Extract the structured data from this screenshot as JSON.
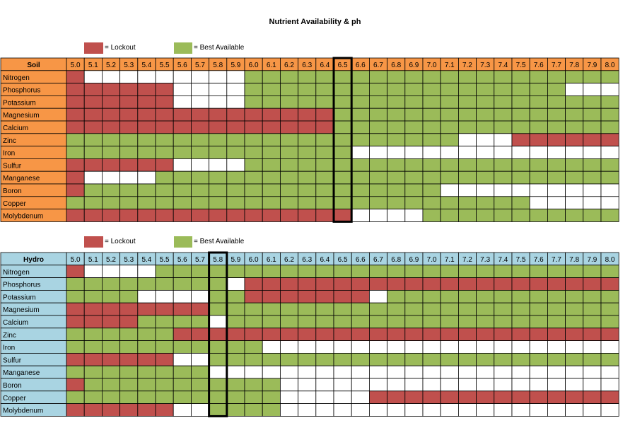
{
  "title": "Nutrient Availability & ph",
  "colors": {
    "lockout": "#c0504d",
    "best": "#9bbb59",
    "none": "#ffffff",
    "soil_header": "#f79646",
    "hydro_header": "#a9d4e2"
  },
  "legend": {
    "lockout": "= Lockout",
    "best": "= Best Available"
  },
  "chart_data": [
    {
      "type": "heatmap",
      "name": "Soil",
      "x": [
        "5.0",
        "5.1",
        "5.2",
        "5.3",
        "5.4",
        "5.5",
        "5.6",
        "5.7",
        "5.8",
        "5.9",
        "6.0",
        "6.1",
        "6.2",
        "6.3",
        "6.4",
        "6.5",
        "6.6",
        "6.7",
        "6.8",
        "6.9",
        "7.0",
        "7.1",
        "7.2",
        "7.3",
        "7.4",
        "7.5",
        "7.6",
        "7.7",
        "7.8",
        "7.9",
        "8.0"
      ],
      "highlight": "6.5",
      "codes": {
        "L": "Lockout",
        "B": "Best Available",
        "-": "Not available"
      },
      "rows": [
        {
          "label": "Nitrogen",
          "cells": "L---------BBBBBBBBBBBBBBBBBBBBB"
        },
        {
          "label": "Phosphorus",
          "cells": "LLLLLL----BBBBBBBBBBBBBBBBBB---"
        },
        {
          "label": "Potassium",
          "cells": "LLLLLL----BBBBBBBBBBBBBBBBBBBBB"
        },
        {
          "label": "Magnesium",
          "cells": "LLLLLLLLLLLLLLLBBBBBBBBBBBBBBBB"
        },
        {
          "label": "Calcium",
          "cells": "LLLLLLLLLLLLLLLBBBBBBBBBBBBBBBB"
        },
        {
          "label": "Zinc",
          "cells": "BBBBBBBBBBBBBBBBBBBBBB---LLLLLL"
        },
        {
          "label": "Iron",
          "cells": "BBBBBBBBBBBBBBBB---------------"
        },
        {
          "label": "Sulfur",
          "cells": "LLLLLL----BBBBBBBBBBBBBBBBBBBBB"
        },
        {
          "label": "Manganese",
          "cells": "L----BBBBBBBBBBBBBBBBBBBBBBBBBB"
        },
        {
          "label": "Boron",
          "cells": "LBBBBBBBBBBBBBBBBBBBB----------"
        },
        {
          "label": "Copper",
          "cells": "BBBBBBBBBBBBBBBBBBBBBBBBBB-----"
        },
        {
          "label": "Molybdenum",
          "cells": "LLLLLLLLLLLLLLLL----BBBBBBBBBBB"
        }
      ]
    },
    {
      "type": "heatmap",
      "name": "Hydro",
      "x": [
        "5.0",
        "5.1",
        "5.2",
        "5.3",
        "5.4",
        "5.5",
        "5.6",
        "5.7",
        "5.8",
        "5.9",
        "6.0",
        "6.1",
        "6.2",
        "6.3",
        "6.4",
        "6.5",
        "6.6",
        "6.7",
        "6.8",
        "6.9",
        "7.0",
        "7.1",
        "7.2",
        "7.3",
        "7.4",
        "7.5",
        "7.6",
        "7.7",
        "7.8",
        "7.9",
        "8.0"
      ],
      "highlight": "5.8",
      "codes": {
        "L": "Lockout",
        "B": "Best Available",
        "-": "Not available"
      },
      "rows": [
        {
          "label": "Nitrogen",
          "cells": "L----BBBBBBBBBBBBBBBBBBBBBBBBBB"
        },
        {
          "label": "Phosphorus",
          "cells": "BBBBBBBBB-LLLLLLLLLLLLLLLLLLLLL"
        },
        {
          "label": "Potassium",
          "cells": "BBBB----BBLLLLLLL-BBBBBBBBBBBBB"
        },
        {
          "label": "Magnesium",
          "cells": "LLLLLLLLBBBBBBBBBBBBBBBBBBBBBBB"
        },
        {
          "label": "Calcium",
          "cells": "LLLLBBBB-BBBBBBBBBBBBBBBBBBBBBB"
        },
        {
          "label": "Zinc",
          "cells": "BBBBBBLLLLLLLLLLLLLLLLLLLLLLLLL"
        },
        {
          "label": "Iron",
          "cells": "BBBBBBBBBBB--------------------"
        },
        {
          "label": "Sulfur",
          "cells": "LLLLLL--BBBBBBBBBBBBBBBBBBBBBBB"
        },
        {
          "label": "Manganese",
          "cells": "BBBBBBBB-----------------------"
        },
        {
          "label": "Boron",
          "cells": "LBBBBBBBBBBB-------------------"
        },
        {
          "label": "Copper",
          "cells": "BBBBBBBBBBBB-----LLLLLLLLLLLLLL"
        },
        {
          "label": "Molybdenum",
          "cells": "LLLLLL--BBBB-------------------"
        }
      ]
    }
  ]
}
